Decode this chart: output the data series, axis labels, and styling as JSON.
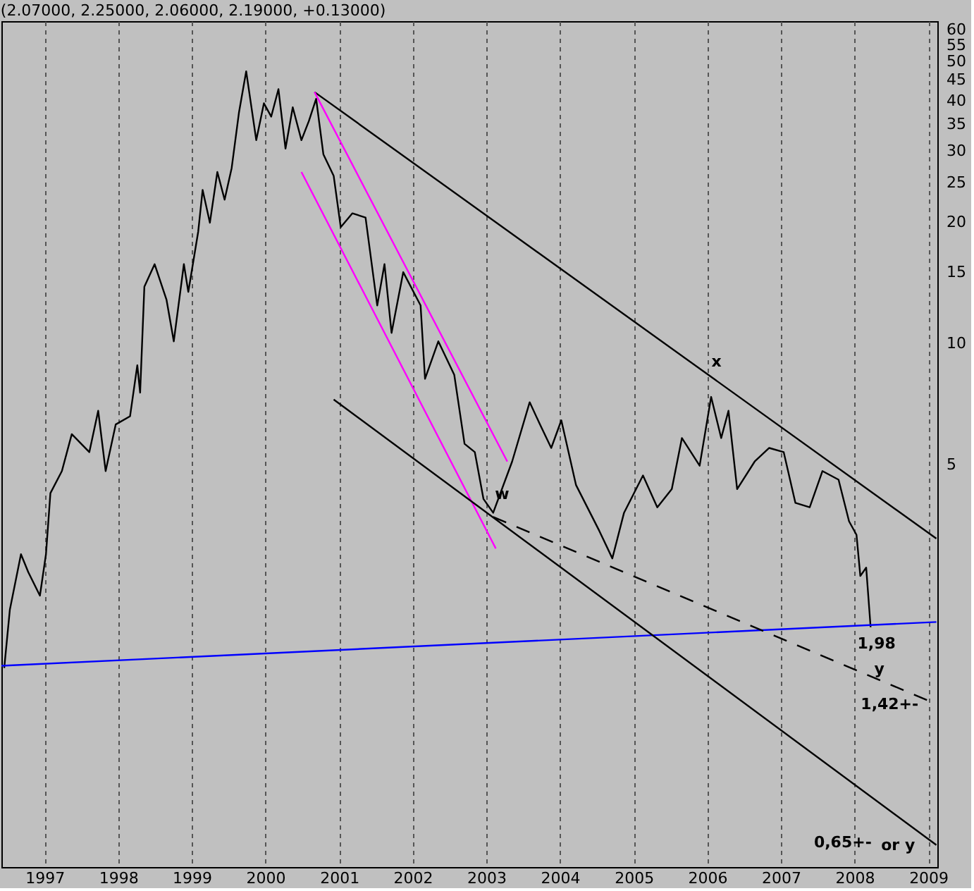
{
  "chart_data": {
    "type": "line",
    "title": "(2.07000, 2.25000, 2.06000, 2.19000, +0.13000)",
    "xlim": [
      "1996-06-01",
      "2009-02-15"
    ],
    "xticks": [
      {
        "value": "1997",
        "label": "1997"
      },
      {
        "value": "1998",
        "label": "1998"
      },
      {
        "value": "1999",
        "label": "1999"
      },
      {
        "value": "2000",
        "label": "2000"
      },
      {
        "value": "2001",
        "label": "2001"
      },
      {
        "value": "2002",
        "label": "2002"
      },
      {
        "value": "2003",
        "label": "2003"
      },
      {
        "value": "2004",
        "label": "2004"
      },
      {
        "value": "2005",
        "label": "2005"
      },
      {
        "value": "2006",
        "label": "2006"
      },
      {
        "value": "2007",
        "label": "2007"
      },
      {
        "value": "2008",
        "label": "2008"
      },
      {
        "value": "2009",
        "label": "2009"
      }
    ],
    "ylim": [
      0.5,
      63
    ],
    "log": true,
    "yticks": [
      5,
      10,
      15,
      20,
      25,
      30,
      35,
      40,
      45,
      50,
      55,
      60
    ],
    "grid": "x",
    "marker": "none",
    "series": [
      {
        "color": "#000000",
        "line_style": "solid",
        "x": [
          "1996-06-15",
          "1996-07-13",
          "1996-09-06",
          "1996-10-12",
          "1996-12-09",
          "1997-01-08",
          "1997-01-30",
          "1997-03-28",
          "1997-05-16",
          "1997-08-11",
          "1997-09-24",
          "1997-10-31",
          "1997-12-20",
          "1998-03-01",
          "1998-04-06",
          "1998-04-20",
          "1998-05-11",
          "1998-07-01",
          "1998-08-29",
          "1998-10-04",
          "1998-11-23",
          "1998-12-15",
          "1999-02-02",
          "1999-02-24",
          "1999-04-01",
          "1999-05-08",
          "1999-06-13",
          "1999-07-18",
          "1999-08-23",
          "1999-09-28",
          "1999-11-17",
          "1999-12-25",
          "2000-01-30",
          "2000-03-06",
          "2000-04-10",
          "2000-05-16",
          "2000-06-28",
          "2000-08-04",
          "2000-09-09",
          "2000-10-15",
          "2000-12-05",
          "2001-01-09",
          "2001-03-08",
          "2001-05-12",
          "2001-07-09",
          "2001-08-14",
          "2001-09-18",
          "2001-11-15",
          "2002-02-09",
          "2002-03-03",
          "2002-05-08",
          "2002-07-26",
          "2002-09-15",
          "2002-11-05",
          "2002-12-18",
          "2003-02-04",
          "2003-05-09",
          "2003-08-04",
          "2003-09-24",
          "2003-11-19",
          "2004-01-08",
          "2004-03-21",
          "2004-07-14",
          "2004-09-17",
          "2004-11-14",
          "2005-02-16",
          "2005-04-28",
          "2005-07-09",
          "2005-08-28",
          "2005-11-24",
          "2006-01-20",
          "2006-03-11",
          "2006-04-16",
          "2006-05-29",
          "2006-08-24",
          "2006-11-04",
          "2007-01-15",
          "2007-03-14",
          "2007-05-24",
          "2007-07-26",
          "2007-10-14",
          "2007-12-05",
          "2008-01-11",
          "2008-01-30",
          "2008-02-28",
          "2008-03-21"
        ],
        "values": [
          1.56,
          2.18,
          2.99,
          2.7,
          2.36,
          2.99,
          4.24,
          4.81,
          5.94,
          5.36,
          6.79,
          4.81,
          6.28,
          6.58,
          8.81,
          7.53,
          13.8,
          15.7,
          12.8,
          10.1,
          15.7,
          13.4,
          18.9,
          24.0,
          19.9,
          26.6,
          22.7,
          27.2,
          37.3,
          47.3,
          31.9,
          39.4,
          36.5,
          42.7,
          30.4,
          38.5,
          31.9,
          35.6,
          40.4,
          29.4,
          26.0,
          19.4,
          21.0,
          20.5,
          12.4,
          15.7,
          10.6,
          15.0,
          12.4,
          8.15,
          10.1,
          8.34,
          5.62,
          5.36,
          4.1,
          3.79,
          5.08,
          7.13,
          6.28,
          5.49,
          6.43,
          4.44,
          3.42,
          2.92,
          3.79,
          4.69,
          3.91,
          4.34,
          5.81,
          4.96,
          7.35,
          5.81,
          6.79,
          4.34,
          5.08,
          5.49,
          5.36,
          4.01,
          3.91,
          4.81,
          4.58,
          3.61,
          3.34,
          2.64,
          2.77,
          1.97
        ]
      },
      {
        "color": "#0000ff",
        "line_style": "solid",
        "x": [
          "1996-06-01",
          "2009-02-10"
        ],
        "values": [
          1.58,
          2.03
        ]
      },
      {
        "color": "#000000",
        "line_style": "solid",
        "x": [
          "2000-09-01",
          "2009-02-10"
        ],
        "values": [
          42.0,
          3.27
        ]
      },
      {
        "color": "#ff00ff",
        "line_style": "solid",
        "x": [
          "2000-09-01",
          "2003-04-15"
        ],
        "values": [
          42.0,
          5.08
        ]
      },
      {
        "color": "#ff00ff",
        "line_style": "solid",
        "x": [
          "2000-06-28",
          "2003-02-17"
        ],
        "values": [
          26.6,
          3.09
        ]
      },
      {
        "color": "#000000",
        "line_style": "solid",
        "x": [
          "2000-12-05",
          "2009-02-10"
        ],
        "values": [
          7.24,
          0.567
        ]
      },
      {
        "color": "#000000",
        "line_style": "dashed",
        "x": [
          "2003-02-04",
          "2009-02-10"
        ],
        "values": [
          3.7,
          1.27
        ]
      }
    ],
    "annotations": [
      "w",
      "x",
      "1,98",
      "y",
      "1,42+-",
      "0,65+-",
      "or y"
    ]
  }
}
